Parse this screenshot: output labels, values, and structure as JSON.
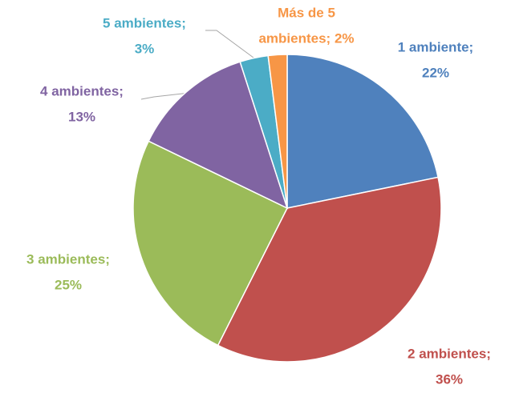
{
  "chart_data": {
    "type": "pie",
    "values": [
      22,
      36,
      25,
      13,
      3,
      2
    ],
    "value_labels": [
      [
        "1 ambiente;",
        "22%"
      ],
      [
        "2 ambientes;",
        "36%"
      ],
      [
        "3 ambientes;",
        "25%"
      ],
      [
        "4 ambientes;",
        "13%"
      ],
      [
        "5 ambientes;",
        "3%"
      ],
      [
        "Más de 5",
        "ambientes; 2%"
      ]
    ],
    "colors": [
      "#4f81bd",
      "#c0504d",
      "#9bbb59",
      "#8064a2",
      "#4bacc6",
      "#f79646"
    ]
  }
}
